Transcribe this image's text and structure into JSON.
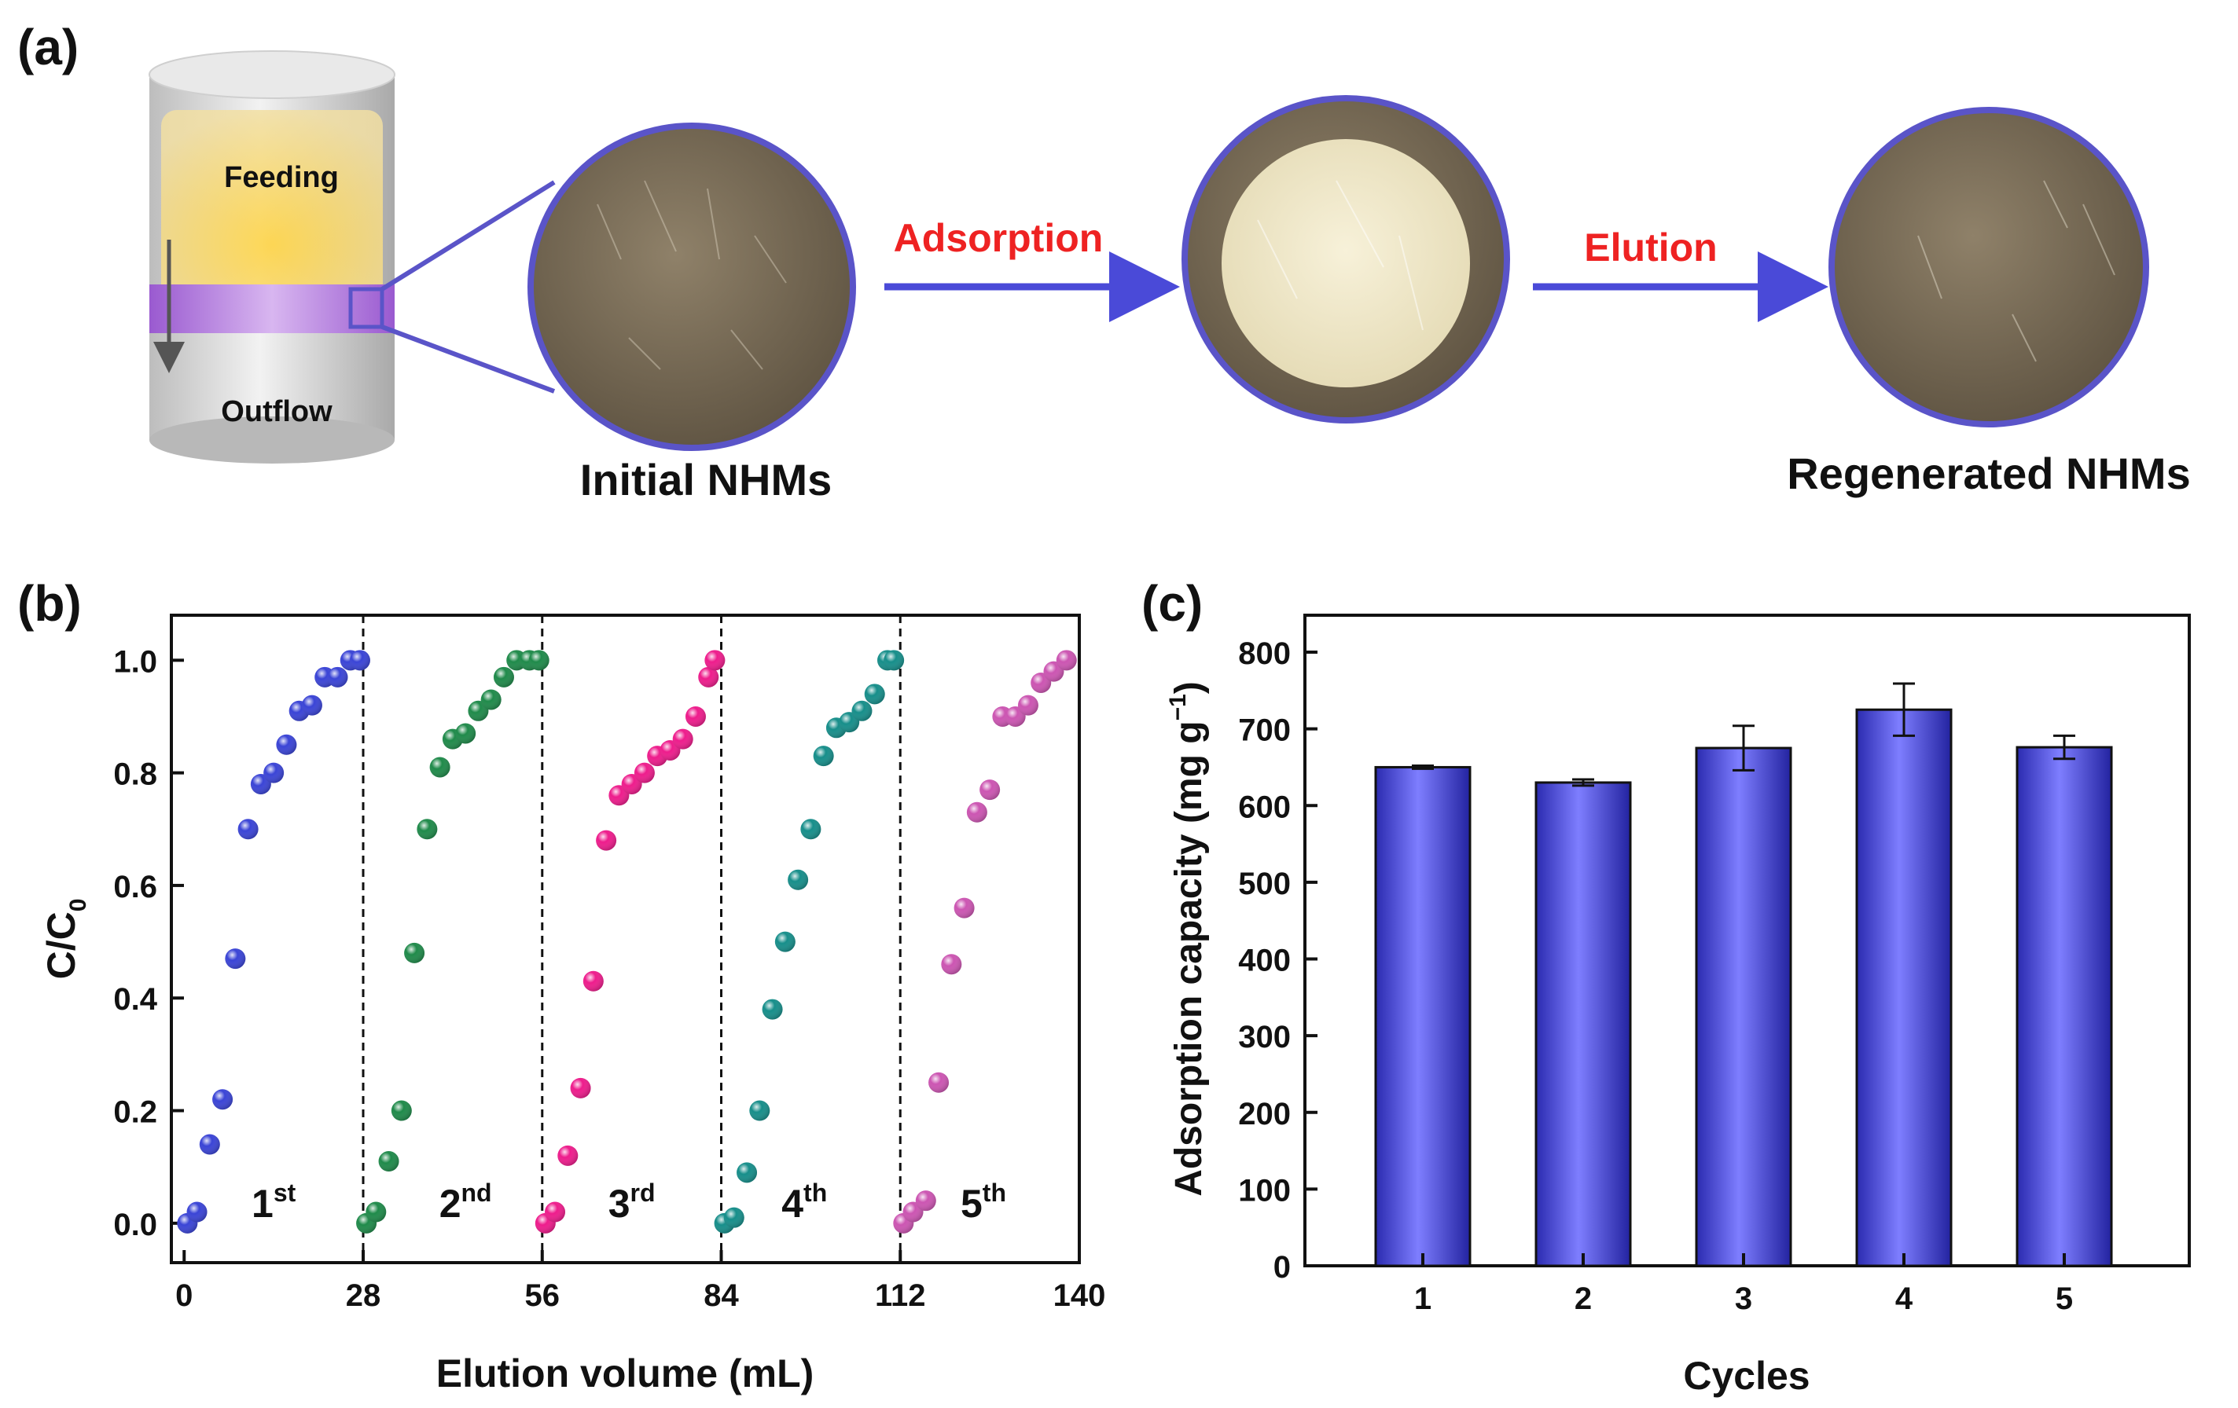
{
  "panels": {
    "a": {
      "label": "(a)",
      "column": {
        "feeding": "Feeding",
        "outflow": "Outflow"
      },
      "step1": "Adsorption",
      "step2": "Elution",
      "caption_initial": "Initial NHMs",
      "caption_regenerated": "Regenerated NHMs"
    },
    "b": {
      "label": "(b)"
    },
    "c": {
      "label": "(c)"
    }
  },
  "colors": {
    "membrane_ring": "#5a54c8",
    "arrow": "#4a4ad8",
    "step_text": "#ee2222",
    "band": "#9a5ad0",
    "bar": "#5a5ae8"
  },
  "chart_data": [
    {
      "type": "scatter",
      "panel": "b",
      "xlabel": "Elution volume (mL)",
      "ylabel": "C/C0",
      "ylabel_main": "C/C",
      "ylabel_sub": "0",
      "xlim": [
        -2,
        140
      ],
      "ylim": [
        -0.07,
        1.08
      ],
      "xticks": [
        0,
        28,
        56,
        84,
        112,
        140
      ],
      "yticks": [
        0.0,
        0.2,
        0.4,
        0.6,
        0.8,
        1.0
      ],
      "cycle_dividers": [
        28,
        56,
        84,
        112
      ],
      "series": [
        {
          "name": "1st cycle",
          "label_main": "1",
          "label_sup": "st",
          "label_x": 14,
          "color": "#3a44d6",
          "x": [
            0.5,
            2,
            4,
            6,
            8,
            10,
            12,
            14,
            16,
            18,
            20,
            22,
            24,
            26,
            27.5
          ],
          "y": [
            0.0,
            0.02,
            0.14,
            0.22,
            0.47,
            0.7,
            0.78,
            0.8,
            0.85,
            0.91,
            0.92,
            0.97,
            0.97,
            1.0,
            1.0
          ]
        },
        {
          "name": "2nd cycle",
          "label_main": "2",
          "label_sup": "nd",
          "label_x": 44,
          "color": "#1f8a4a",
          "x": [
            28.5,
            30,
            32,
            34,
            36,
            38,
            40,
            42,
            44,
            46,
            48,
            50,
            52,
            54,
            55.5
          ],
          "y": [
            0.0,
            0.02,
            0.11,
            0.2,
            0.48,
            0.7,
            0.81,
            0.86,
            0.87,
            0.91,
            0.93,
            0.97,
            1.0,
            1.0,
            1.0
          ]
        },
        {
          "name": "3rd cycle",
          "label_main": "3",
          "label_sup": "rd",
          "label_x": 70,
          "color": "#ee1c8c",
          "x": [
            56.5,
            58,
            60,
            62,
            64,
            66,
            68,
            70,
            72,
            74,
            76,
            78,
            80,
            82,
            83
          ],
          "y": [
            0.0,
            0.02,
            0.12,
            0.24,
            0.43,
            0.68,
            0.76,
            0.78,
            0.8,
            0.83,
            0.84,
            0.86,
            0.9,
            0.97,
            1.0
          ]
        },
        {
          "name": "4th cycle",
          "label_main": "4",
          "label_sup": "th",
          "label_x": 97,
          "color": "#168e8a",
          "x": [
            84.5,
            86,
            88,
            90,
            92,
            94,
            96,
            98,
            100,
            102,
            104,
            106,
            108,
            110,
            111
          ],
          "y": [
            0.0,
            0.01,
            0.09,
            0.2,
            0.38,
            0.5,
            0.61,
            0.7,
            0.83,
            0.88,
            0.89,
            0.91,
            0.94,
            1.0,
            1.0
          ]
        },
        {
          "name": "5th cycle",
          "label_main": "5",
          "label_sup": "th",
          "label_x": 125,
          "color": "#cc55b2",
          "x": [
            112.5,
            114,
            116,
            118,
            120,
            122,
            124,
            126,
            128,
            130,
            132,
            134,
            136,
            138
          ],
          "y": [
            0.0,
            0.02,
            0.04,
            0.25,
            0.46,
            0.56,
            0.73,
            0.77,
            0.9,
            0.9,
            0.92,
            0.96,
            0.98,
            1.0
          ]
        }
      ]
    },
    {
      "type": "bar",
      "panel": "c",
      "xlabel": "Cycles",
      "ylabel": "Adsorption capacity (mg g-1)",
      "ylabel_main": "Adsorption capacity (mg g",
      "ylabel_sup": "−1",
      "ylabel_end": ")",
      "categories": [
        "1",
        "2",
        "3",
        "4",
        "5"
      ],
      "values": [
        650,
        630,
        675,
        725,
        676
      ],
      "errors": [
        2,
        4,
        29,
        34,
        15
      ],
      "ylim": [
        0,
        800
      ],
      "yticks": [
        0,
        100,
        200,
        300,
        400,
        500,
        600,
        700,
        800
      ],
      "color": "#5a5ae8"
    }
  ]
}
